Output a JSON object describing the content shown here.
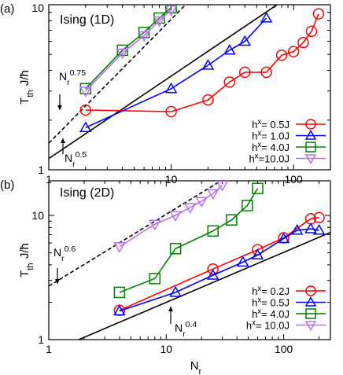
{
  "chart_data": [
    {
      "type": "line",
      "panel_label": "(a)",
      "title": "Ising (1D)",
      "ylabel": "T_th J/ħ",
      "xscale": "log",
      "yscale": "log",
      "xlim": [
        1,
        200
      ],
      "ylim": [
        1,
        10
      ],
      "x_ticks": [
        1,
        10,
        100
      ],
      "y_ticks": [
        1,
        10
      ],
      "x_tick_labels": [
        "1",
        "10",
        "100"
      ],
      "y_tick_labels": [
        "1",
        "10"
      ],
      "legend_position": "bottom-right",
      "reference_lines": [
        {
          "label_base": "N",
          "label_sub": "r",
          "label_exp": "0.75",
          "exponent": 0.75,
          "style": "dashed"
        },
        {
          "label_base": "N",
          "label_sub": "r",
          "label_exp": "0.5",
          "exponent": 0.5,
          "style": "solid"
        }
      ],
      "series": [
        {
          "name_base": "h",
          "name_sup": "x",
          "name_tail": "= 0.5J",
          "marker": "circle",
          "color": "#ff0000",
          "x": [
            2,
            10,
            20,
            30,
            40,
            60,
            80,
            100,
            120,
            140,
            160
          ],
          "y": [
            2.3,
            2.25,
            2.65,
            3.4,
            3.9,
            3.9,
            4.95,
            5.2,
            5.9,
            6.9,
            8.8
          ]
        },
        {
          "name_base": "h",
          "name_sup": "x",
          "name_tail": "= 1.0J",
          "marker": "triangle-up",
          "color": "#0000ff",
          "x": [
            2,
            10,
            20,
            30,
            40,
            60
          ],
          "y": [
            1.8,
            3.1,
            4.3,
            5.3,
            6.0,
            8.3
          ]
        },
        {
          "name_base": "h",
          "name_sup": "x",
          "name_tail": "= 4.0J",
          "marker": "square",
          "color": "#008000",
          "x": [
            2,
            4,
            6,
            8,
            10
          ],
          "y": [
            3.1,
            5.3,
            6.8,
            8.3,
            9.6
          ]
        },
        {
          "name_base": "h",
          "name_sup": "x",
          "name_tail": "=10.0J",
          "marker": "triangle-down",
          "color": "#b870f0",
          "x": [
            2,
            4,
            6,
            8,
            10
          ],
          "y": [
            3.0,
            5.1,
            6.5,
            8.0,
            9.3
          ]
        }
      ]
    },
    {
      "type": "line",
      "panel_label": "(b)",
      "title": "Ising (2D)",
      "xlabel": "N_r",
      "ylabel": "T_th J/ħ",
      "xscale": "log",
      "yscale": "log",
      "xlim": [
        1,
        250
      ],
      "ylim": [
        1,
        19
      ],
      "x_ticks": [
        1,
        10,
        100
      ],
      "y_ticks": [
        1,
        10
      ],
      "x_tick_labels": [
        "1",
        "10",
        "100"
      ],
      "y_tick_labels": [
        "1",
        "10"
      ],
      "legend_position": "bottom-right",
      "reference_lines": [
        {
          "label_base": "N",
          "label_sub": "r",
          "label_exp": "0.6",
          "exponent": 0.6,
          "style": "dashed"
        },
        {
          "label_base": "N",
          "label_sub": "r",
          "label_exp": "0.4",
          "exponent": 0.4,
          "style": "solid"
        }
      ],
      "series": [
        {
          "name_base": "h",
          "name_sup": "x",
          "name_tail": "= 0.2J",
          "marker": "circle",
          "color": "#ff0000",
          "x": [
            4,
            25,
            60,
            100,
            170,
            200
          ],
          "y": [
            1.72,
            3.7,
            5.3,
            6.6,
            9.4,
            9.6
          ]
        },
        {
          "name_base": "h",
          "name_sup": "x",
          "name_tail": "= 0.5J",
          "marker": "triangle-up",
          "color": "#0000ff",
          "x": [
            4,
            12,
            25,
            45,
            60,
            100,
            130,
            170,
            200
          ],
          "y": [
            1.7,
            2.4,
            3.3,
            4.2,
            4.8,
            6.5,
            7.6,
            7.8,
            7.6
          ]
        },
        {
          "name_base": "h",
          "name_sup": "x",
          "name_tail": "= 4.0J",
          "marker": "square",
          "color": "#008000",
          "x": [
            4,
            8,
            12,
            25,
            36,
            49,
            60
          ],
          "y": [
            2.4,
            3.1,
            5.4,
            7.5,
            9.2,
            12.0,
            16.5
          ]
        },
        {
          "name_base": "h",
          "name_sup": "x",
          "name_tail": "= 10.0J",
          "marker": "triangle-down",
          "color": "#b870f0",
          "x": [
            4,
            8,
            12,
            16,
            20,
            25,
            30
          ],
          "y": [
            5.6,
            8.5,
            10.0,
            11.6,
            13.0,
            15.0,
            17.5
          ]
        }
      ]
    }
  ],
  "shared_xlabel_base": "N",
  "shared_xlabel_sub": "r"
}
